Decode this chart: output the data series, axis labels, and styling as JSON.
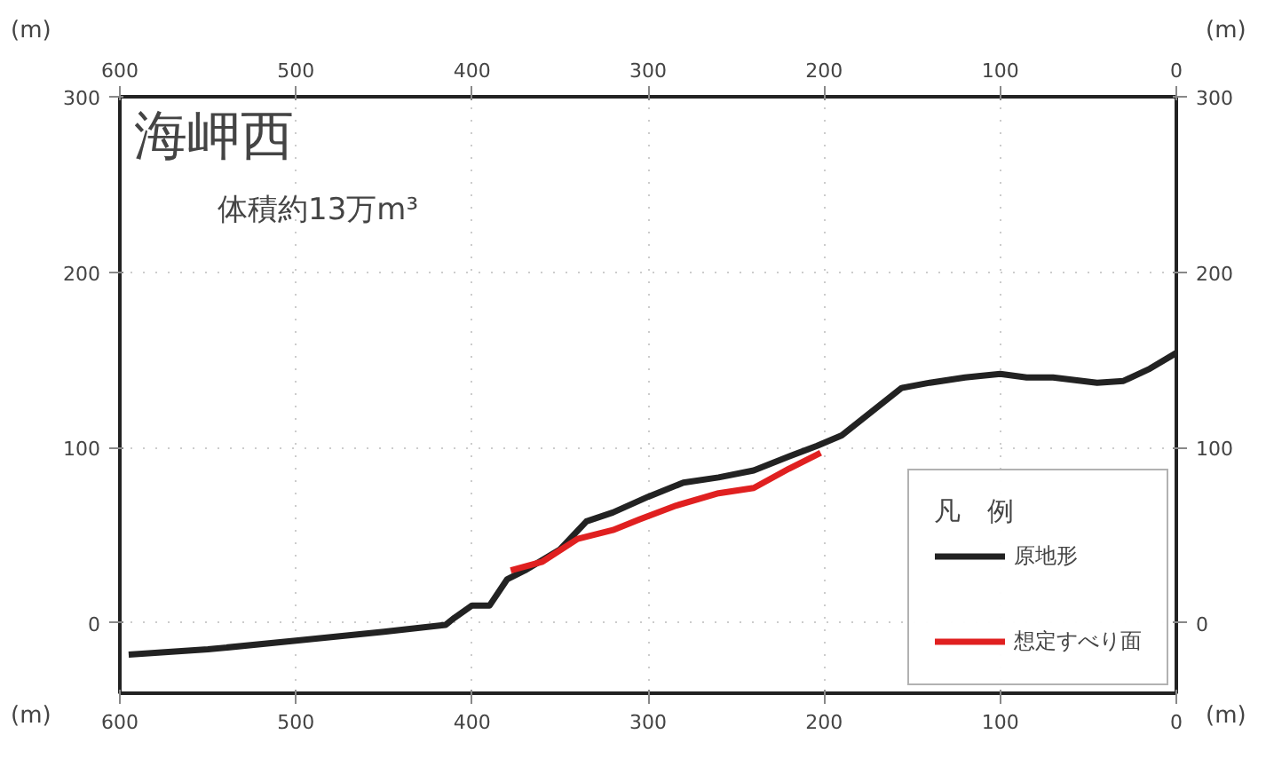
{
  "chart_data": {
    "type": "line",
    "title": "海岬西",
    "subtitle": "体積約13万m³",
    "xlabel": "(m)",
    "ylabel": "(m)",
    "y2label": "(m)",
    "annotations": [
      "(m)"
    ],
    "xlim": [
      600,
      0
    ],
    "xticks": [
      600,
      500,
      400,
      300,
      200,
      100,
      0
    ],
    "x2lim": [
      600,
      0
    ],
    "x2ticks": [
      600,
      500,
      400,
      300,
      200,
      100,
      0
    ],
    "ylim": [
      -40,
      300
    ],
    "yticks": [
      0,
      100,
      200,
      300
    ],
    "y2lim": [
      -40,
      300
    ],
    "y2ticks": [
      0,
      100,
      200,
      300
    ],
    "grid": true,
    "legend": "bottom right",
    "legend_title": "凡　例",
    "line_style": "solid",
    "series": [
      {
        "name": "原地形",
        "color": "#222222",
        "x": [
          595,
          550,
          500,
          450,
          415,
          410,
          400,
          390,
          380,
          370,
          350,
          335,
          320,
          300,
          280,
          260,
          240,
          220,
          204,
          190,
          180,
          156,
          140,
          120,
          100,
          85,
          70,
          45,
          30,
          15,
          0
        ],
        "values": [
          -18,
          -15,
          -10,
          -5,
          -1,
          3,
          10,
          10,
          25,
          30,
          42,
          58,
          63,
          72,
          80,
          83,
          87,
          95,
          101,
          107,
          115,
          134,
          137,
          140,
          142,
          140,
          140,
          137,
          138,
          145,
          154
        ]
      },
      {
        "name": "想定すべり面",
        "color": "#e02020",
        "x": [
          378,
          360,
          340,
          320,
          305,
          284,
          260,
          240,
          220,
          202
        ],
        "values": [
          30,
          35,
          48,
          53,
          59,
          67,
          74,
          77,
          88,
          97
        ]
      }
    ]
  }
}
